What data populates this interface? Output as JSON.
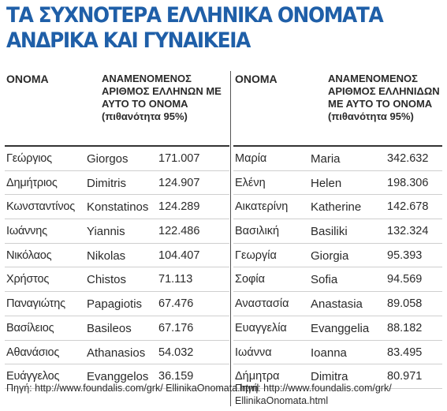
{
  "title": {
    "line1": "ΤΑ ΣΥΧΝΟΤΕΡΑ ΕΛΛΗΝΙΚΑ ΟΝΟΜΑΤΑ",
    "line2": "ΑΝΔΡΙΚΑ ΚΑΙ ΓΥΝΑΙΚΕΙΑ"
  },
  "male": {
    "header_name": "ΟΝΟΜΑ",
    "header_count": "ΑΝΑΜΕΝΟΜΕΝΟΣ ΑΡΙΘΜΟΣ ΕΛΛΗΝΩΝ ΜΕ ΑΥΤΟ ΤΟ ΟΝΟΜΑ (πιθανότητα 95%)",
    "rows": [
      {
        "greek": "Γεώργιος",
        "latin": "Giorgos",
        "count": "171.007"
      },
      {
        "greek": "Δημήτριος",
        "latin": "Dimitris",
        "count": "124.907"
      },
      {
        "greek": "Κωνσταντίνος",
        "latin": "Konstatinos",
        "count": "124.289"
      },
      {
        "greek": "Ιωάννης",
        "latin": "Yiannis",
        "count": "122.486"
      },
      {
        "greek": "Νικόλαος",
        "latin": "Nikolas",
        "count": "104.407"
      },
      {
        "greek": "Χρήστος",
        "latin": "Chistos",
        "count": "71.113"
      },
      {
        "greek": "Παναγιώτης",
        "latin": "Papagiotis",
        "count": "67.476"
      },
      {
        "greek": "Βασίλειος",
        "latin": "Basileos",
        "count": "67.176"
      },
      {
        "greek": "Αθανάσιος",
        "latin": "Athanasios",
        "count": "54.032"
      },
      {
        "greek": "Ευάγγελος",
        "latin": "Evanggelos",
        "count": "36.159"
      }
    ],
    "source": "Πηγή: http://www.foundalis.com/grk/ EllinikaOnomata.html"
  },
  "female": {
    "header_name": "ΟΝΟΜΑ",
    "header_count": "ΑΝΑΜΕΝΟΜΕΝΟΣ ΑΡΙΘΜΟΣ ΕΛΛΗΝΙΔΩΝ ΜΕ ΑΥΤΟ ΤΟ ΟΝΟΜΑ (πιθανότητα 95%)",
    "rows": [
      {
        "greek": "Μαρία",
        "latin": "Maria",
        "count": "342.632"
      },
      {
        "greek": "Ελένη",
        "latin": "Helen",
        "count": "198.306"
      },
      {
        "greek": "Αικατερίνη",
        "latin": "Katherine",
        "count": "142.678"
      },
      {
        "greek": "Βασιλική",
        "latin": "Basiliki",
        "count": "132.324"
      },
      {
        "greek": "Γεωργία",
        "latin": "Giorgia",
        "count": "95.393"
      },
      {
        "greek": "Σοφία",
        "latin": "Sofia",
        "count": "94.569"
      },
      {
        "greek": "Αναστασία",
        "latin": "Anastasia",
        "count": "89.058"
      },
      {
        "greek": "Ευαγγελία",
        "latin": "Evanggelia",
        "count": "88.182"
      },
      {
        "greek": "Ιωάννα",
        "latin": "Ioanna",
        "count": "83.495"
      },
      {
        "greek": "Δήμητρα",
        "latin": "Dimitra",
        "count": "80.971"
      }
    ],
    "source": "Πηγή: http://www.foundalis.com/grk/ EllinikaOnomata.html"
  }
}
